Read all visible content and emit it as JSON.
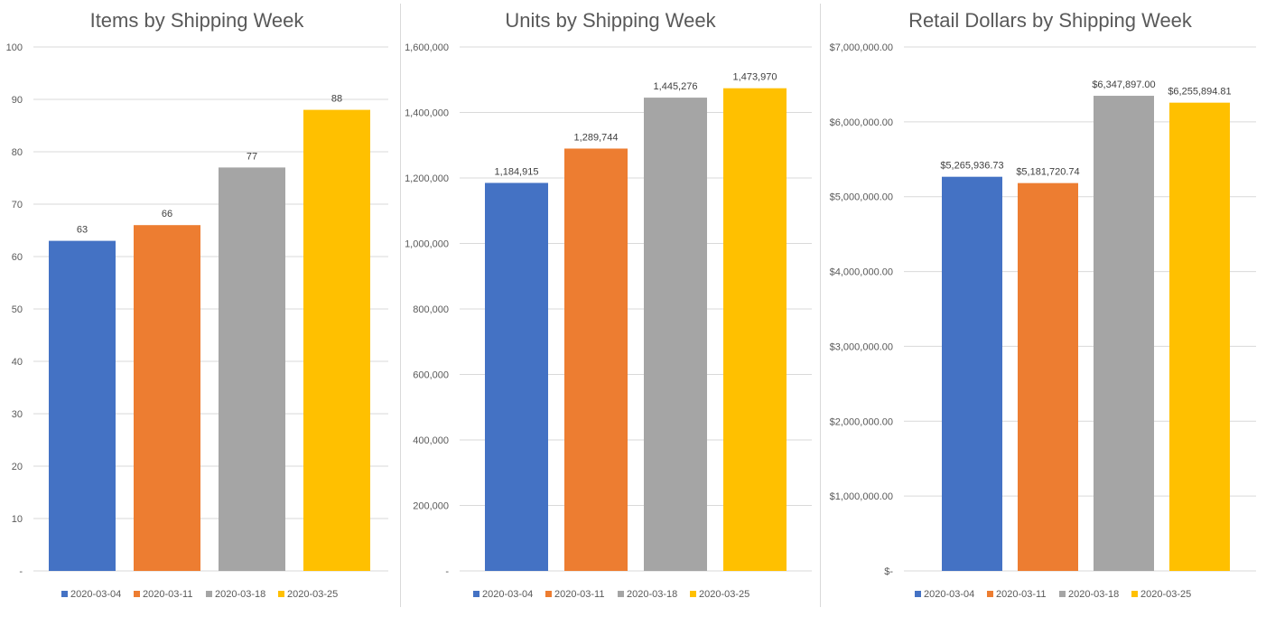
{
  "colors": [
    "#4472c4",
    "#ed7d31",
    "#a5a5a5",
    "#ffc000"
  ],
  "chart_data": [
    {
      "type": "bar",
      "title": "Items by Shipping Week",
      "categories": [
        "2020-03-04",
        "2020-03-11",
        "2020-03-18",
        "2020-03-25"
      ],
      "values": [
        63,
        66,
        77,
        88
      ],
      "value_labels": [
        "63",
        "66",
        "77",
        "88"
      ],
      "ylim": [
        0,
        100
      ],
      "yticks": [
        0,
        10,
        20,
        30,
        40,
        50,
        60,
        70,
        80,
        90,
        100
      ],
      "ytick_labels": [
        "-",
        "10",
        "20",
        "30",
        "40",
        "50",
        "60",
        "70",
        "80",
        "90",
        "100"
      ],
      "grid": true,
      "legend": "bottom"
    },
    {
      "type": "bar",
      "title": "Units by Shipping Week",
      "categories": [
        "2020-03-04",
        "2020-03-11",
        "2020-03-18",
        "2020-03-25"
      ],
      "values": [
        1184915,
        1289744,
        1445276,
        1473970
      ],
      "value_labels": [
        "1,184,915",
        "1,289,744",
        "1,445,276",
        "1,473,970"
      ],
      "ylim": [
        0,
        1600000
      ],
      "yticks": [
        0,
        200000,
        400000,
        600000,
        800000,
        1000000,
        1200000,
        1400000,
        1600000
      ],
      "ytick_labels": [
        "-",
        "200,000",
        "400,000",
        "600,000",
        "800,000",
        "1,000,000",
        "1,200,000",
        "1,400,000",
        "1,600,000"
      ],
      "grid": true,
      "legend": "bottom"
    },
    {
      "type": "bar",
      "title": "Retail Dollars by Shipping Week",
      "categories": [
        "2020-03-04",
        "2020-03-11",
        "2020-03-18",
        "2020-03-25"
      ],
      "values": [
        5265936.73,
        5181720.74,
        6347897.0,
        6255894.81
      ],
      "value_labels": [
        "$5,265,936.73",
        "$5,181,720.74",
        "$6,347,897.00",
        "$6,255,894.81"
      ],
      "ylim": [
        0,
        7000000
      ],
      "yticks": [
        0,
        1000000,
        2000000,
        3000000,
        4000000,
        5000000,
        6000000,
        7000000
      ],
      "ytick_labels": [
        "$-",
        "$1,000,000.00",
        "$2,000,000.00",
        "$3,000,000.00",
        "$4,000,000.00",
        "$5,000,000.00",
        "$6,000,000.00",
        "$7,000,000.00"
      ],
      "grid": true,
      "legend": "bottom"
    }
  ]
}
